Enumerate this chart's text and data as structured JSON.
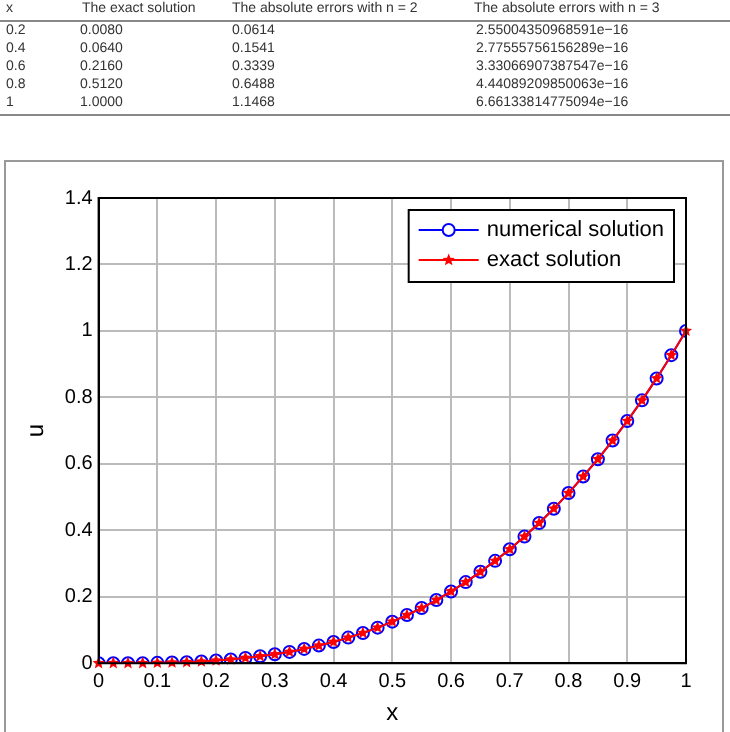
{
  "chart_data": [
    {
      "type": "other",
      "annotations": [
        "x\tThe exact solution\tThe absolute errors with n = 2\tThe absolute errors with n = 3",
        "0.2\t0.0080\t0.0614\t2.55004350968591e−16",
        "0.4\t0.0640\t0.1541\t2.77555756156289e−16",
        "0.6\t0.2160\t0.3339\t3.33066907387547e−16",
        "0.8\t0.5120\t0.6488\t4.44089209850063e−16",
        "1\t1.0000\t1.1468\t6.66133814775094e−16"
      ]
    },
    {
      "type": "line",
      "xlabel": "x",
      "ylabel": "u",
      "x": [
        0,
        0.025,
        0.05,
        0.075,
        0.1,
        0.125,
        0.15,
        0.175,
        0.2,
        0.225,
        0.25,
        0.275,
        0.3,
        0.325,
        0.35,
        0.375,
        0.4,
        0.425,
        0.45,
        0.475,
        0.5,
        0.525,
        0.55,
        0.575,
        0.6,
        0.625,
        0.65,
        0.675,
        0.7,
        0.725,
        0.75,
        0.775,
        0.8,
        0.825,
        0.85,
        0.875,
        0.9,
        0.925,
        0.95,
        0.975,
        1
      ],
      "series": [
        {
          "name": "numerical solution",
          "color": "#0000ff",
          "marker": "circle",
          "values": [
            0,
            0,
            0,
            0,
            0.001,
            0.002,
            0.003,
            0.005,
            0.008,
            0.011,
            0.016,
            0.021,
            0.027,
            0.034,
            0.043,
            0.053,
            0.064,
            0.077,
            0.091,
            0.107,
            0.125,
            0.145,
            0.166,
            0.19,
            0.216,
            0.244,
            0.275,
            0.308,
            0.343,
            0.381,
            0.422,
            0.465,
            0.512,
            0.562,
            0.614,
            0.67,
            0.729,
            0.791,
            0.857,
            0.927,
            1
          ]
        },
        {
          "name": "exact solution",
          "color": "#ff0000",
          "marker": "star",
          "values": [
            0,
            0,
            0,
            0,
            0.001,
            0.002,
            0.003,
            0.005,
            0.008,
            0.011,
            0.016,
            0.021,
            0.027,
            0.034,
            0.043,
            0.053,
            0.064,
            0.077,
            0.091,
            0.107,
            0.125,
            0.145,
            0.166,
            0.19,
            0.216,
            0.244,
            0.275,
            0.308,
            0.343,
            0.381,
            0.422,
            0.465,
            0.512,
            0.562,
            0.614,
            0.67,
            0.729,
            0.791,
            0.857,
            0.927,
            1
          ]
        }
      ],
      "xlim": [
        0,
        1
      ],
      "xticks": [
        0,
        0.1,
        0.2,
        0.3,
        0.4,
        0.5,
        0.6,
        0.7,
        0.8,
        0.9,
        1
      ],
      "ylim": [
        0,
        1.4
      ],
      "yticks": [
        0,
        0.2,
        0.4,
        0.6,
        0.8,
        1,
        1.2,
        1.4
      ],
      "grid": true,
      "legend": "top right",
      "line_style": "solid"
    }
  ]
}
